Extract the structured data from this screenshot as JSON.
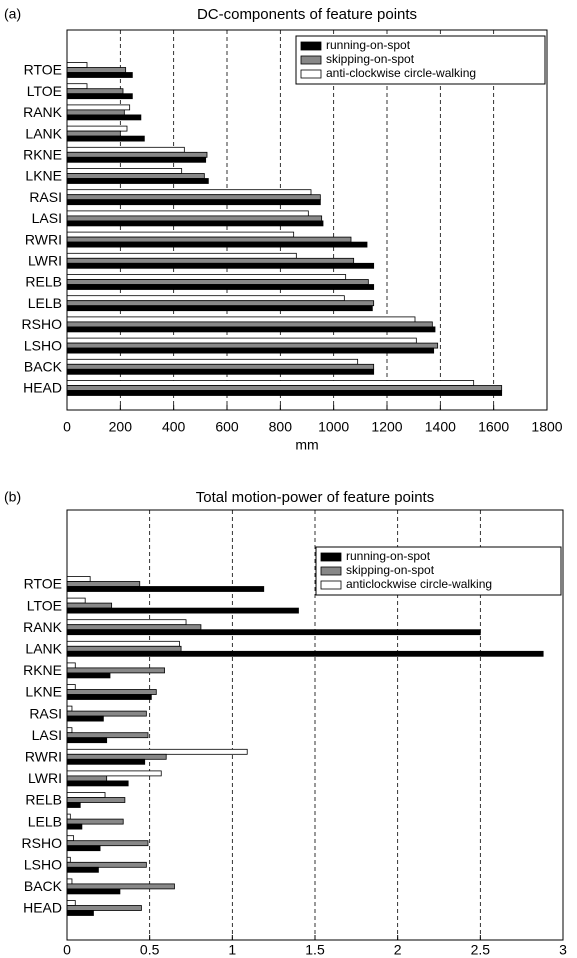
{
  "chart_data": [
    {
      "type": "bar",
      "orientation": "horizontal",
      "panel_label": "(a)",
      "title": "DC-components of feature points",
      "xlabel": "mm",
      "categories": [
        "RTOE",
        "LTOE",
        "RANK",
        "LANK",
        "RKNE",
        "LKNE",
        "RASI",
        "LASI",
        "RWRI",
        "LWRI",
        "RELB",
        "LELB",
        "RSHO",
        "LSHO",
        "BACK",
        "HEAD"
      ],
      "series": [
        {
          "name": "running-on-spot",
          "color": "#000000",
          "values": [
            245,
            245,
            277,
            290,
            520,
            530,
            950,
            960,
            1125,
            1150,
            1150,
            1145,
            1380,
            1375,
            1150,
            1630
          ]
        },
        {
          "name": "skipping-on-spot",
          "color": "#888888",
          "values": [
            220,
            210,
            215,
            200,
            525,
            515,
            950,
            955,
            1065,
            1075,
            1130,
            1150,
            1370,
            1390,
            1150,
            1630
          ]
        },
        {
          "name": "anti-clockwise circle-walking",
          "color": "#ffffff",
          "values": [
            75,
            75,
            235,
            225,
            440,
            430,
            915,
            905,
            850,
            860,
            1045,
            1040,
            1305,
            1310,
            1090,
            1525
          ]
        }
      ],
      "xlim": [
        0,
        1800
      ],
      "xticks": [
        0,
        200,
        400,
        600,
        800,
        1000,
        1200,
        1400,
        1600,
        1800
      ],
      "grid": true,
      "legend": "upper right"
    },
    {
      "type": "bar",
      "orientation": "horizontal",
      "panel_label": "(b)",
      "title": "Total motion-power of feature points",
      "categories": [
        "RTOE",
        "LTOE",
        "RANK",
        "LANK",
        "RKNE",
        "LKNE",
        "RASI",
        "LASI",
        "RWRI",
        "LWRI",
        "RELB",
        "LELB",
        "RSHO",
        "LSHO",
        "BACK",
        "HEAD"
      ],
      "series": [
        {
          "name": "running-on-spot",
          "color": "#000000",
          "values": [
            1.19,
            1.4,
            2.5,
            2.88,
            0.26,
            0.51,
            0.22,
            0.24,
            0.47,
            0.37,
            0.08,
            0.09,
            0.2,
            0.19,
            0.32,
            0.16
          ]
        },
        {
          "name": "skipping-on-spot",
          "color": "#888888",
          "values": [
            0.44,
            0.27,
            0.81,
            0.69,
            0.59,
            0.54,
            0.48,
            0.49,
            0.6,
            0.24,
            0.35,
            0.34,
            0.49,
            0.48,
            0.65,
            0.45
          ]
        },
        {
          "name": "anticlockwise circle-walking",
          "color": "#ffffff",
          "values": [
            0.14,
            0.11,
            0.72,
            0.68,
            0.05,
            0.05,
            0.03,
            0.03,
            1.09,
            0.57,
            0.23,
            0.02,
            0.04,
            0.02,
            0.03,
            0.05
          ]
        }
      ],
      "xlim": [
        0,
        3
      ],
      "xticks": [
        0,
        0.5,
        1,
        1.5,
        2,
        2.5,
        3
      ],
      "grid": true,
      "legend": "upper right"
    }
  ]
}
